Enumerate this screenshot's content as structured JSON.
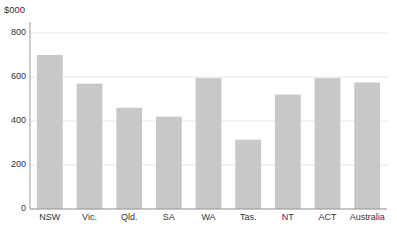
{
  "chart_data": {
    "type": "bar",
    "y_label": "$000",
    "categories": [
      "NSW",
      "Vic.",
      "Qld.",
      "SA",
      "WA",
      "Tas.",
      "NT",
      "ACT",
      "Australia"
    ],
    "values": [
      700,
      570,
      460,
      420,
      595,
      315,
      520,
      595,
      575
    ],
    "color": "#c8c8c8",
    "ylim": [
      0,
      850
    ],
    "yticks": [
      0,
      200,
      400,
      600,
      800
    ],
    "grid": true
  }
}
